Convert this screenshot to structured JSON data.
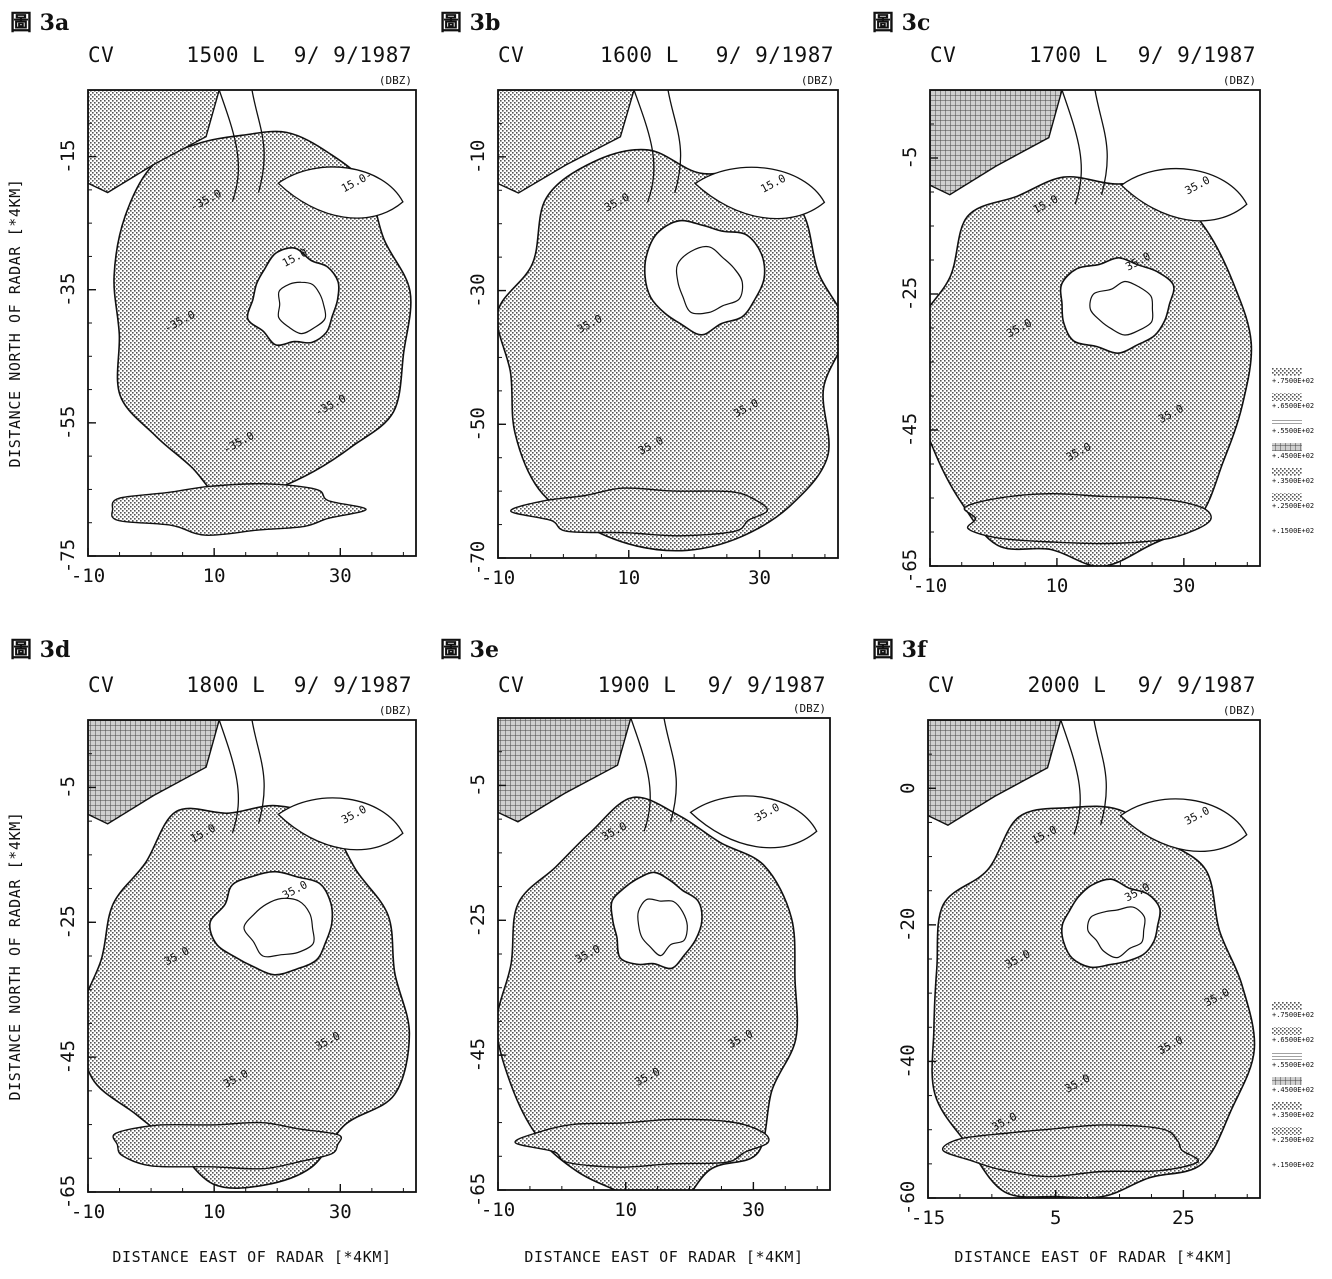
{
  "chart_data": [
    {
      "type": "contour",
      "title": "圖 3a",
      "subtitle": {
        "variable": "CV",
        "time": "1500 L",
        "date": "9/ 9/1987"
      },
      "unit": "(DBZ)",
      "xticks": [
        "-10",
        "10",
        "30"
      ],
      "yticks": [
        "-15",
        "-35",
        "-55",
        "-75"
      ],
      "xlim": [
        -10,
        42
      ],
      "ylim": [
        -75,
        -5
      ],
      "xlabel": "",
      "ylabel": "DISTANCE NORTH OF RADAR [*4KM]",
      "contour_labels": [
        "-35.0",
        "-35.0",
        "-35.0",
        "-35.0",
        "15.0-",
        "15.0"
      ]
    },
    {
      "type": "contour",
      "title": "圖 3b",
      "subtitle": {
        "variable": "CV",
        "time": "1600 L",
        "date": "9/ 9/1987"
      },
      "unit": "(DBZ)",
      "xticks": [
        "-10",
        "10",
        "30"
      ],
      "yticks": [
        "-10",
        "-30",
        "-50",
        "-70"
      ],
      "xlim": [
        -10,
        42
      ],
      "ylim": [
        -70,
        0
      ],
      "xlabel": "",
      "ylabel": "",
      "contour_labels": [
        "35.0",
        "35.0",
        "35.0",
        "35.0",
        "15.0"
      ]
    },
    {
      "type": "contour",
      "title": "圖 3c",
      "subtitle": {
        "variable": "CV",
        "time": "1700 L",
        "date": "9/ 9/1987"
      },
      "unit": "(DBZ)",
      "xticks": [
        "-10",
        "10",
        "30"
      ],
      "yticks": [
        "-5",
        "-25",
        "-45",
        "-65"
      ],
      "xlim": [
        -10,
        42
      ],
      "ylim": [
        -65,
        5
      ],
      "xlabel": "",
      "ylabel": "",
      "contour_labels": [
        "15.0",
        "35.0",
        "35.0",
        "35.0",
        "35.0",
        "35.0"
      ]
    },
    {
      "type": "contour",
      "title": "圖 3d",
      "subtitle": {
        "variable": "CV",
        "time": "1800 L",
        "date": "9/ 9/1987"
      },
      "unit": "(DBZ)",
      "xticks": [
        "-10",
        "10",
        "30"
      ],
      "yticks": [
        "-5",
        "-25",
        "-45",
        "-65"
      ],
      "xlim": [
        -10,
        42
      ],
      "ylim": [
        -65,
        5
      ],
      "xlabel": "DISTANCE EAST OF RADAR [*4KM]",
      "ylabel": "DISTANCE NORTH OF RADAR [*4KM]",
      "contour_labels": [
        "15.0",
        "35.0",
        "35.0",
        "35.0",
        "35.0",
        "35.0"
      ]
    },
    {
      "type": "contour",
      "title": "圖 3e",
      "subtitle": {
        "variable": "CV",
        "time": "1900 L",
        "date": "9/ 9/1987"
      },
      "unit": "(DBZ)",
      "xticks": [
        "-10",
        "10",
        "30"
      ],
      "yticks": [
        "-5",
        "-25",
        "-45",
        "-65"
      ],
      "xlim": [
        -10,
        42
      ],
      "ylim": [
        -65,
        5
      ],
      "xlabel": "DISTANCE EAST OF RADAR [*4KM]",
      "ylabel": "",
      "contour_labels": [
        "35.0",
        "35.0",
        "35.0",
        "35.0",
        "35.0"
      ]
    },
    {
      "type": "contour",
      "title": "圖 3f",
      "subtitle": {
        "variable": "CV",
        "time": "2000 L",
        "date": "9/ 9/1987"
      },
      "unit": "(DBZ)",
      "xticks": [
        "-15",
        "5",
        "25"
      ],
      "yticks": [
        "0",
        "-20",
        "-40",
        "-60"
      ],
      "xlim": [
        -15,
        37
      ],
      "ylim": [
        -60,
        10
      ],
      "xlabel": "DISTANCE EAST OF RADAR [*4KM]",
      "ylabel": "",
      "contour_labels": [
        "15.0",
        "35.0",
        "35.0",
        "35.0",
        "35.0",
        "35.0",
        "35.0",
        "35.0"
      ]
    }
  ],
  "legend_upper": [
    "+.7500E+02",
    "+.6500E+02",
    "+.5500E+02",
    "+.4500E+02",
    "+.3500E+02",
    "+.2500E+02",
    "+.1500E+02"
  ],
  "legend_lower": [
    "+.7500E+02",
    "+.6500E+02",
    "+.5500E+02",
    "+.4500E+02",
    "+.3500E+02",
    "+.2500E+02",
    "+.1500E+02"
  ]
}
